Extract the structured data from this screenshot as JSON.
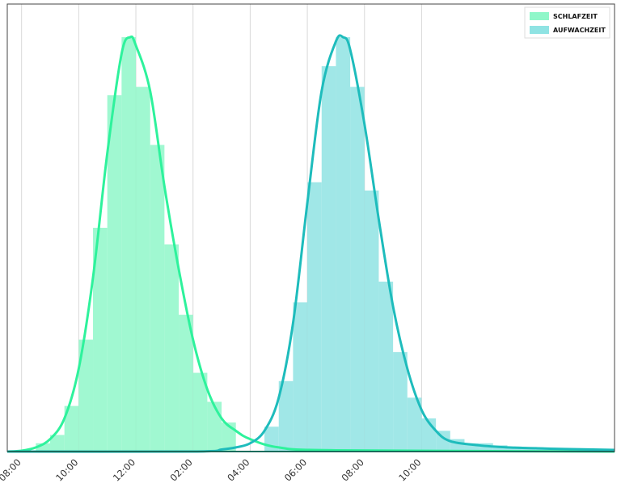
{
  "chart_data": {
    "type": "histogram",
    "title": "",
    "xlabel": "",
    "ylabel": "",
    "x_unit": "hours since 07:00 (clock time axis)",
    "xlim": [
      0.5,
      21.75
    ],
    "ylim": [
      0,
      1.08
    ],
    "grid": {
      "vertical": true,
      "horizontal": false
    },
    "legend_position": "top-right",
    "x_ticks": [
      {
        "at": 1,
        "label": "08:00"
      },
      {
        "at": 3,
        "label": "10:00"
      },
      {
        "at": 5,
        "label": "12:00"
      },
      {
        "at": 7,
        "label": "02:00"
      },
      {
        "at": 9,
        "label": "04:00"
      },
      {
        "at": 11,
        "label": "06:00"
      },
      {
        "at": 13,
        "label": "08:00"
      },
      {
        "at": 15,
        "label": "10:00"
      }
    ],
    "bin_width": 0.5,
    "series": [
      {
        "name": "SCHLAFZEIT",
        "color": "#2ef29c",
        "fill_color": "#8ff7c9",
        "bins": [
          [
            1.75,
            0.02
          ],
          [
            2.25,
            0.04
          ],
          [
            2.75,
            0.11
          ],
          [
            3.25,
            0.27
          ],
          [
            3.75,
            0.54
          ],
          [
            4.25,
            0.86
          ],
          [
            4.75,
            1.0
          ],
          [
            5.25,
            0.88
          ],
          [
            5.75,
            0.74
          ],
          [
            6.25,
            0.5
          ],
          [
            6.75,
            0.33
          ],
          [
            7.25,
            0.19
          ],
          [
            7.75,
            0.12
          ],
          [
            8.25,
            0.07
          ]
        ],
        "curve": [
          [
            0.5,
            0.0
          ],
          [
            1.0,
            0.002
          ],
          [
            1.5,
            0.01
          ],
          [
            2.0,
            0.03
          ],
          [
            2.5,
            0.08
          ],
          [
            3.0,
            0.2
          ],
          [
            3.5,
            0.42
          ],
          [
            4.0,
            0.72
          ],
          [
            4.5,
            0.96
          ],
          [
            4.8,
            1.0
          ],
          [
            5.0,
            0.98
          ],
          [
            5.5,
            0.87
          ],
          [
            6.0,
            0.64
          ],
          [
            6.5,
            0.44
          ],
          [
            7.0,
            0.27
          ],
          [
            7.5,
            0.15
          ],
          [
            8.0,
            0.08
          ],
          [
            8.5,
            0.05
          ],
          [
            9.0,
            0.03
          ],
          [
            10.0,
            0.01
          ],
          [
            12.0,
            0.003
          ],
          [
            21.75,
            0.0
          ]
        ]
      },
      {
        "name": "AUFWACHZEIT",
        "color": "#1ebcbc",
        "fill_color": "#8fe3e3",
        "bins": [
          [
            9.75,
            0.06
          ],
          [
            10.25,
            0.17
          ],
          [
            10.75,
            0.36
          ],
          [
            11.25,
            0.65
          ],
          [
            11.75,
            0.93
          ],
          [
            12.25,
            1.0
          ],
          [
            12.75,
            0.88
          ],
          [
            13.25,
            0.63
          ],
          [
            13.75,
            0.41
          ],
          [
            14.25,
            0.24
          ],
          [
            14.75,
            0.13
          ],
          [
            15.25,
            0.08
          ],
          [
            15.75,
            0.05
          ],
          [
            16.25,
            0.03
          ],
          [
            16.75,
            0.02
          ],
          [
            17.25,
            0.02
          ],
          [
            17.75,
            0.015
          ],
          [
            18.25,
            0.012
          ],
          [
            18.75,
            0.01
          ],
          [
            19.25,
            0.008
          ],
          [
            19.75,
            0.006
          ],
          [
            20.25,
            0.005
          ],
          [
            20.75,
            0.004
          ],
          [
            21.25,
            0.003
          ]
        ],
        "curve": [
          [
            0.5,
            0.0
          ],
          [
            7.0,
            0.0
          ],
          [
            8.0,
            0.005
          ],
          [
            8.5,
            0.01
          ],
          [
            9.0,
            0.02
          ],
          [
            9.5,
            0.05
          ],
          [
            10.0,
            0.13
          ],
          [
            10.5,
            0.31
          ],
          [
            11.0,
            0.6
          ],
          [
            11.5,
            0.87
          ],
          [
            12.0,
            0.99
          ],
          [
            12.25,
            1.0
          ],
          [
            12.5,
            0.97
          ],
          [
            13.0,
            0.79
          ],
          [
            13.5,
            0.56
          ],
          [
            14.0,
            0.35
          ],
          [
            14.5,
            0.2
          ],
          [
            15.0,
            0.1
          ],
          [
            15.5,
            0.05
          ],
          [
            16.0,
            0.025
          ],
          [
            17.0,
            0.015
          ],
          [
            18.0,
            0.01
          ],
          [
            19.0,
            0.008
          ],
          [
            20.0,
            0.006
          ],
          [
            21.75,
            0.004
          ]
        ]
      }
    ]
  },
  "legend": {
    "items": [
      {
        "label": "SCHLAFZEIT",
        "color": "#8ff7c9"
      },
      {
        "label": "AUFWACHZEIT",
        "color": "#8fe3e3"
      }
    ]
  }
}
